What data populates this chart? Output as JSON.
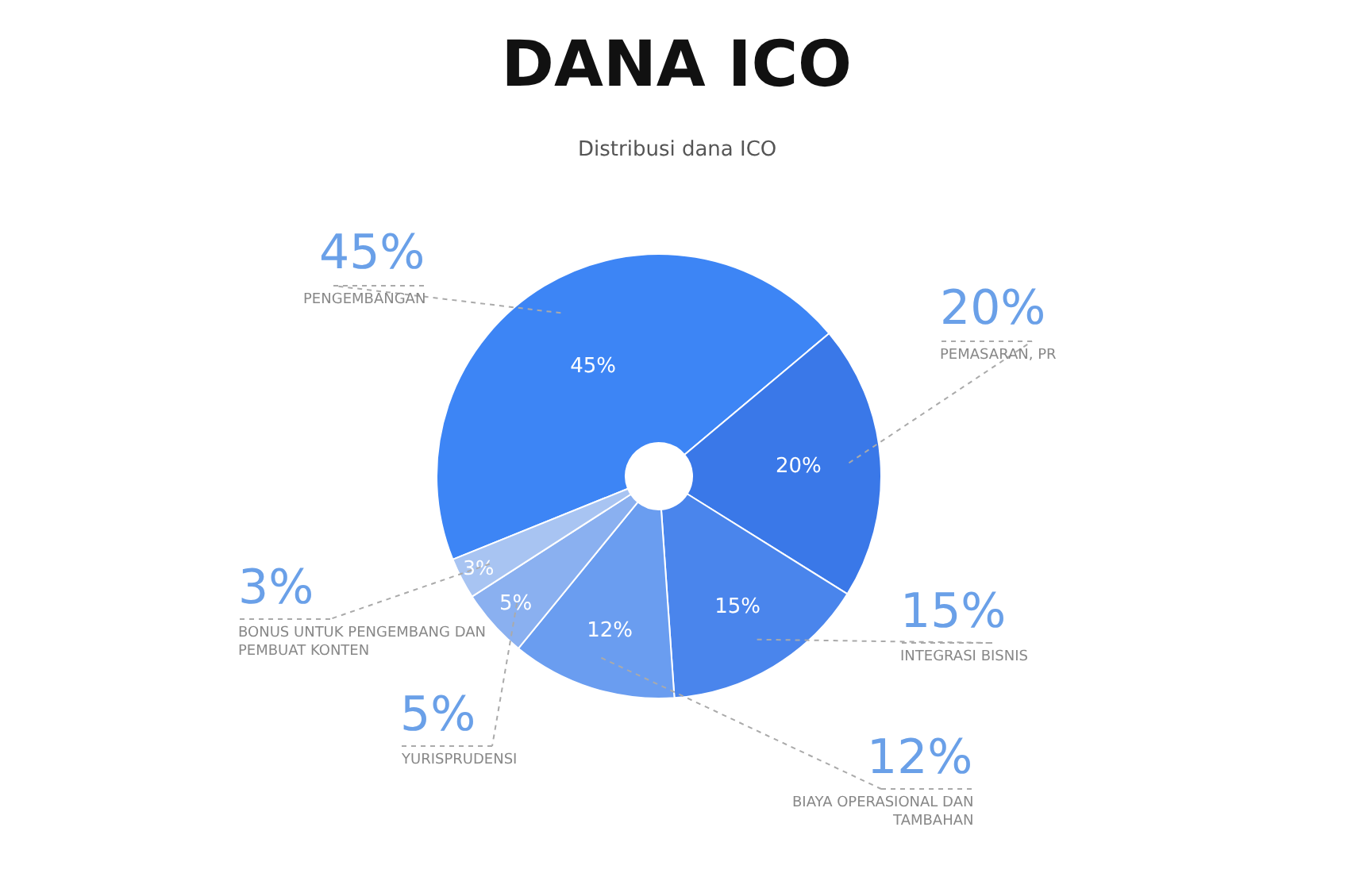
{
  "chart_data": {
    "type": "donut",
    "title": "DANA ICO",
    "subtitle": "Distribusi dana ICO",
    "categories": [
      "PENGEMBANGAN",
      "PEMASARAN, PR",
      "INTEGRASI BISNIS",
      "BIAYA OPERASIONAL DAN TAMBAHAN",
      "YURISPRUDENSI",
      "BONUS UNTUK PENGEMBANG DAN PEMBUAT KONTEN"
    ],
    "values": [
      45,
      20,
      15,
      12,
      5,
      3
    ],
    "value_labels": [
      "45%",
      "20%",
      "15%",
      "12%",
      "5%",
      "3%"
    ],
    "colors": [
      "#3d85f5",
      "#3a78e8",
      "#4a85ec",
      "#6a9df0",
      "#8ab0f0",
      "#a8c4f2"
    ],
    "legend": false
  }
}
